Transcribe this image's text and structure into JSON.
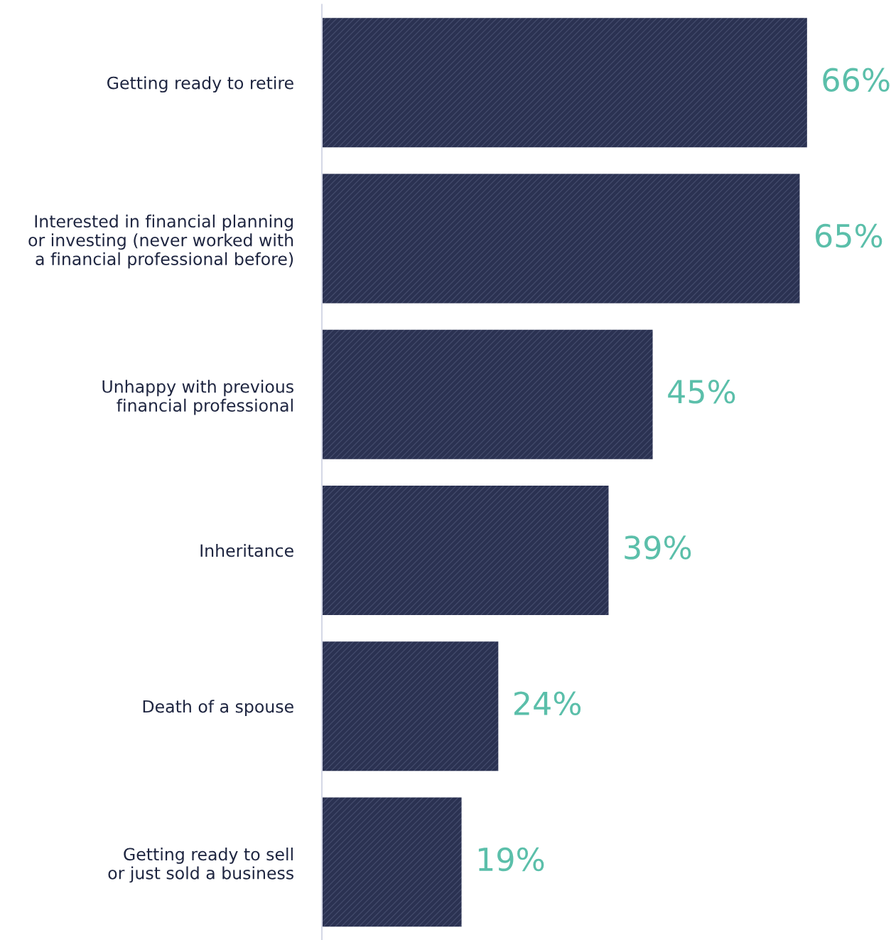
{
  "chart_data": {
    "type": "bar",
    "orientation": "horizontal",
    "categories": [
      "Getting ready to retire",
      "Interested in financial planning\nor investing (never worked with\na financial professional before)",
      "Unhappy with previous\nfinancial professional",
      "Inheritance",
      "Death of a spouse",
      "Getting ready to sell\nor just sold a business"
    ],
    "values": [
      66,
      65,
      45,
      39,
      24,
      19
    ],
    "value_labels": [
      "66%",
      "65%",
      "45%",
      "39%",
      "24%",
      "19%"
    ],
    "color": "#2b3252",
    "grid": false
  }
}
